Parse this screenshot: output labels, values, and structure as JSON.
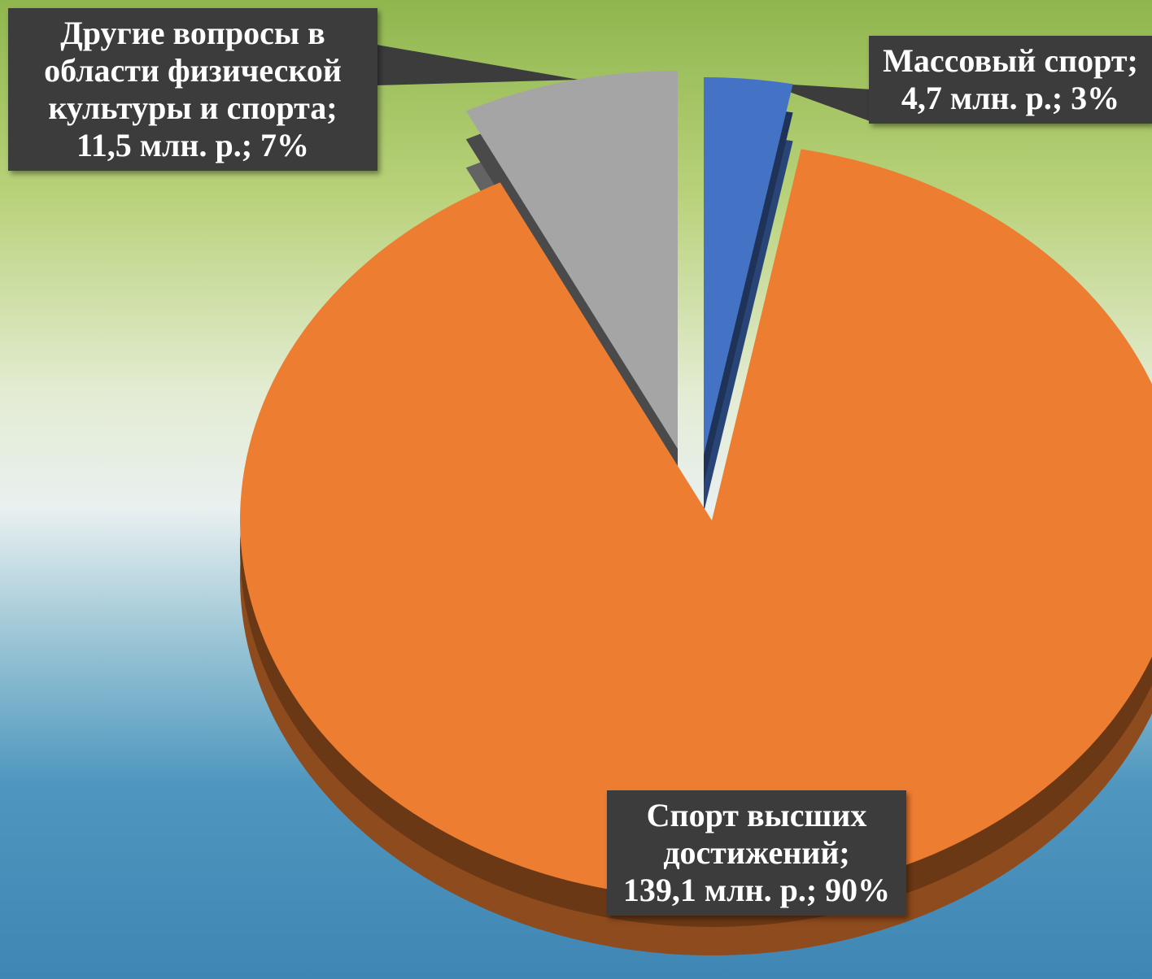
{
  "chart_data": {
    "type": "pie",
    "categories": [
      "Массовый спорт;",
      "Спорт высших достижений;",
      "Другие вопросы в области физической культуры и спорта;"
    ],
    "values": [
      4.7,
      139.1,
      11.5
    ],
    "value_labels": [
      "4,7 млн. р.; 3%",
      "139,1 млн. р.; 90%",
      "11,5 млн. р.; 7%"
    ],
    "colors": [
      "#4472c4",
      "#ed7d31",
      "#a5a5a5"
    ]
  }
}
